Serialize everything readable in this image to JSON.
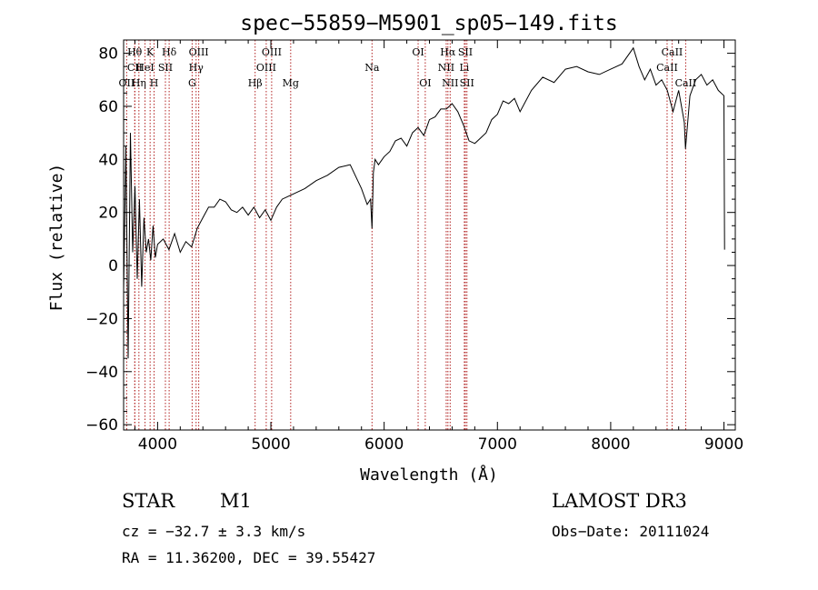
{
  "chart_data": {
    "type": "line",
    "title": "spec−55859−M5901_sp05−149.fits",
    "xlabel": "Wavelength (Å)",
    "ylabel": "Flux (relative)",
    "xlim": [
      3700,
      9100
    ],
    "ylim": [
      -62,
      85
    ],
    "x_ticks": [
      4000,
      5000,
      6000,
      7000,
      8000,
      9000
    ],
    "x_tick_labels": [
      "4000",
      "5000",
      "6000",
      "7000",
      "8000",
      "9000"
    ],
    "y_ticks": [
      -60,
      -40,
      -20,
      0,
      20,
      40,
      60,
      80
    ],
    "y_tick_labels": [
      "−60",
      "−40",
      "−20",
      "0",
      "20",
      "40",
      "60",
      "80"
    ],
    "line_color": "#000000",
    "marker_color": "#b22222",
    "series": [
      {
        "name": "flux",
        "x": [
          3700,
          3720,
          3740,
          3760,
          3780,
          3800,
          3820,
          3840,
          3860,
          3880,
          3900,
          3920,
          3940,
          3960,
          3980,
          4000,
          4050,
          4100,
          4150,
          4200,
          4250,
          4300,
          4350,
          4400,
          4450,
          4500,
          4550,
          4600,
          4650,
          4700,
          4750,
          4800,
          4850,
          4900,
          4950,
          5000,
          5050,
          5100,
          5150,
          5200,
          5300,
          5400,
          5500,
          5600,
          5700,
          5800,
          5850,
          5880,
          5893,
          5905,
          5920,
          5950,
          6000,
          6050,
          6100,
          6150,
          6200,
          6250,
          6300,
          6350,
          6400,
          6450,
          6500,
          6550,
          6600,
          6650,
          6700,
          6750,
          6800,
          6850,
          6900,
          6950,
          7000,
          7050,
          7100,
          7150,
          7200,
          7300,
          7400,
          7500,
          7600,
          7700,
          7800,
          7900,
          8000,
          8100,
          8200,
          8250,
          8300,
          8350,
          8400,
          8450,
          8500,
          8550,
          8600,
          8650,
          8660,
          8700,
          8750,
          8800,
          8850,
          8900,
          8950,
          9000,
          9005
        ],
        "y": [
          -10,
          45,
          -35,
          50,
          5,
          30,
          -5,
          25,
          -8,
          18,
          5,
          10,
          2,
          15,
          3,
          8,
          10,
          6,
          12,
          5,
          9,
          7,
          14,
          18,
          22,
          22,
          25,
          24,
          21,
          20,
          22,
          19,
          22,
          18,
          21,
          17,
          22,
          25,
          26,
          27,
          29,
          32,
          34,
          37,
          38,
          29,
          23,
          25,
          14,
          35,
          40,
          38,
          41,
          43,
          47,
          48,
          45,
          50,
          52,
          49,
          55,
          56,
          59,
          59,
          61,
          58,
          53,
          47,
          46,
          48,
          50,
          55,
          57,
          62,
          61,
          63,
          58,
          66,
          71,
          69,
          74,
          75,
          73,
          72,
          74,
          76,
          82,
          75,
          70,
          74,
          68,
          70,
          66,
          58,
          66,
          54,
          44,
          64,
          70,
          72,
          68,
          70,
          66,
          64,
          6
        ]
      }
    ],
    "emission_lines": [
      {
        "label": "Hθ",
        "x": 3798,
        "row": 0
      },
      {
        "label": "CII",
        "x": 3800,
        "row": 1
      },
      {
        "label": "OII",
        "x": 3727,
        "row": 2
      },
      {
        "label": "K",
        "x": 3934,
        "row": 0
      },
      {
        "label": "HeI",
        "x": 3889,
        "row": 1
      },
      {
        "label": "Hη",
        "x": 3835,
        "row": 2
      },
      {
        "label": "Hδ",
        "x": 4102,
        "row": 0
      },
      {
        "label": "SII",
        "x": 4069,
        "row": 1
      },
      {
        "label": "H",
        "x": 3969,
        "row": 2
      },
      {
        "label": "OIII",
        "x": 4363,
        "row": 0
      },
      {
        "label": "Hγ",
        "x": 4340,
        "row": 1
      },
      {
        "label": "G",
        "x": 4305,
        "row": 2
      },
      {
        "label": "OIII",
        "x": 5007,
        "row": 0
      },
      {
        "label": "OIII",
        "x": 4959,
        "row": 1
      },
      {
        "label": "Hβ",
        "x": 4861,
        "row": 2
      },
      {
        "label": "Mg",
        "x": 5175,
        "row": 2
      },
      {
        "label": "Na",
        "x": 5893,
        "row": 1
      },
      {
        "label": "OI",
        "x": 6300,
        "row": 0
      },
      {
        "label": "OI",
        "x": 6363,
        "row": 2
      },
      {
        "label": "Hα",
        "x": 6563,
        "row": 0
      },
      {
        "label": "SII",
        "x": 6717,
        "row": 0
      },
      {
        "label": "NII",
        "x": 6548,
        "row": 1
      },
      {
        "label": "Li",
        "x": 6708,
        "row": 1
      },
      {
        "label": "NII",
        "x": 6583,
        "row": 2
      },
      {
        "label": "SII",
        "x": 6731,
        "row": 2
      },
      {
        "label": "CaII",
        "x": 8542,
        "row": 0
      },
      {
        "label": "CaII",
        "x": 8498,
        "row": 1
      },
      {
        "label": "CaII",
        "x": 8662,
        "row": 2
      }
    ]
  },
  "info": {
    "object_class": "STAR",
    "subclass": "M1",
    "survey": "LAMOST DR3",
    "redshift": "cz = −32.7 ± 3.3 km/s",
    "obs_date": "Obs−Date: 20111024",
    "coords": "RA =  11.36200, DEC =  39.55427"
  }
}
